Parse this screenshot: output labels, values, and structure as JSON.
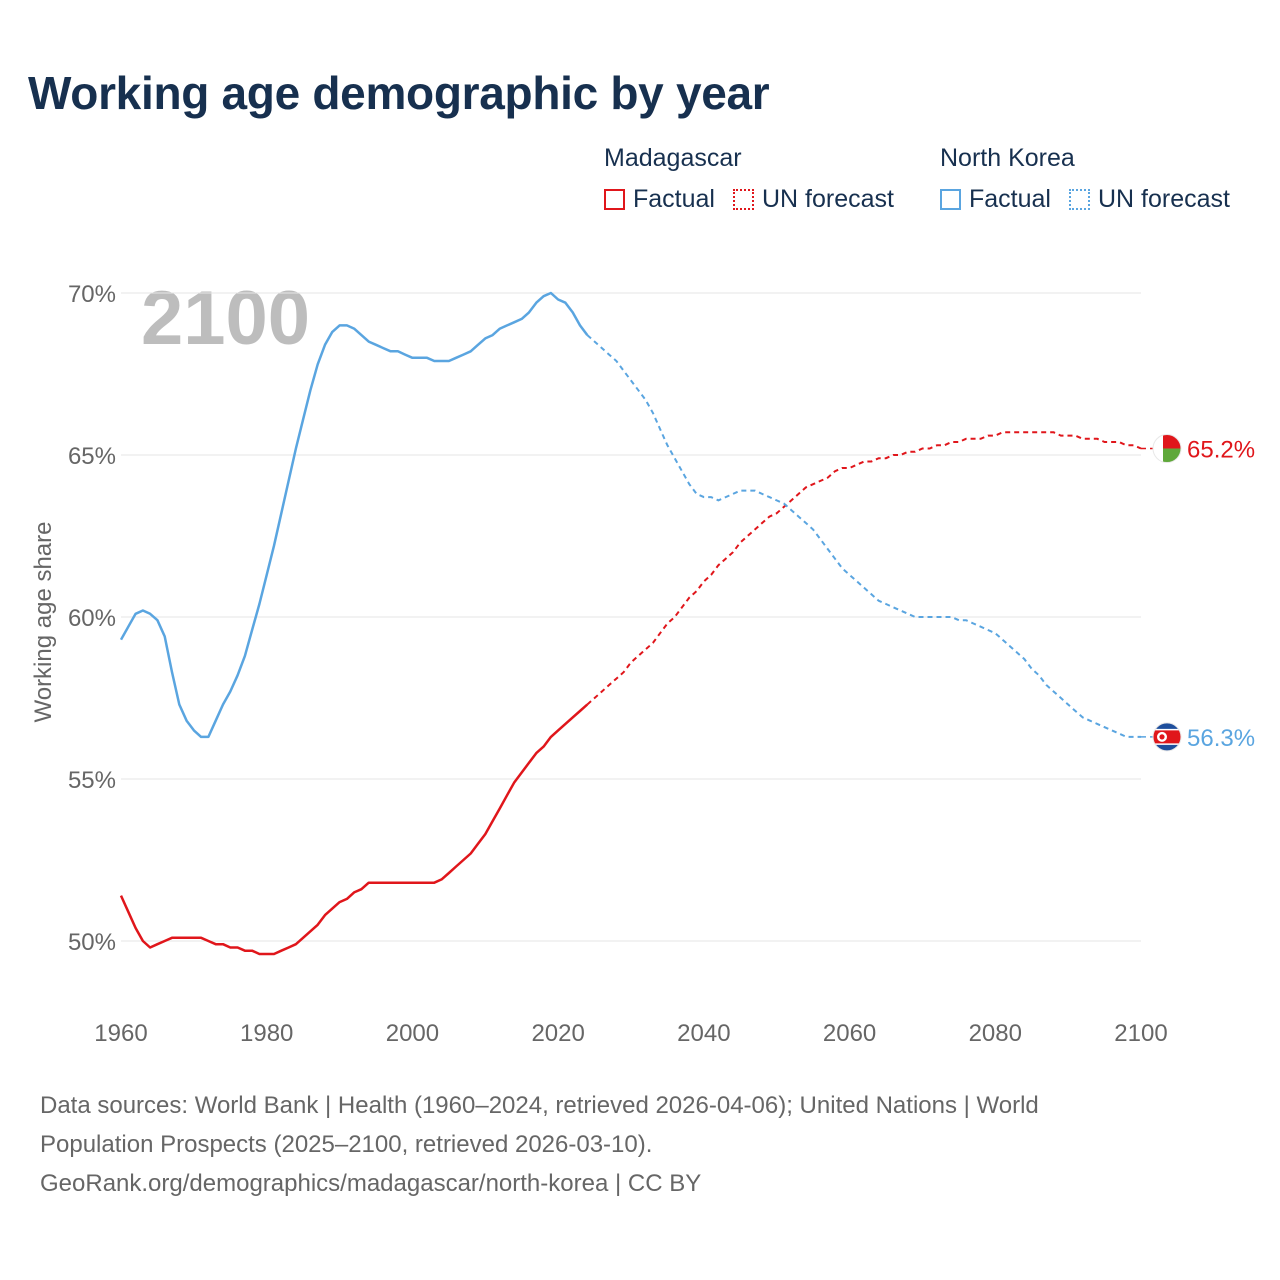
{
  "title": "Working age demographic by year",
  "year_overlay": "2100",
  "legend": {
    "groups": [
      {
        "name": "Madagascar",
        "factual": "Factual",
        "forecast": "UN forecast",
        "color": "#e0161b"
      },
      {
        "name": "North Korea",
        "factual": "Factual",
        "forecast": "UN forecast",
        "color": "#5aa5e0"
      }
    ]
  },
  "footer": {
    "line1": "Data sources: World Bank | Health (1960–2024, retrieved 2026-04-06); United Nations | World",
    "line2": "Population Prospects (2025–2100, retrieved 2026-03-10).",
    "line3": "GeoRank.org/demographics/madagascar/north-korea | CC BY"
  },
  "chart_data": {
    "type": "line",
    "title": "Working age demographic by year",
    "xlabel": "",
    "ylabel": "Working age share",
    "xlim": [
      1960,
      2100
    ],
    "ylim": [
      48.5,
      70.3
    ],
    "x_ticks": [
      1960,
      1980,
      2000,
      2020,
      2040,
      2060,
      2080,
      2100
    ],
    "x_tick_labels": [
      "1960",
      "1980",
      "2000",
      "2020",
      "2040",
      "2060",
      "2080",
      "2100"
    ],
    "y_ticks": [
      50,
      55,
      60,
      65,
      70
    ],
    "y_tick_labels": [
      "50%",
      "55%",
      "60%",
      "65%",
      "70%"
    ],
    "grid": true,
    "forecast_start": 2024,
    "series": [
      {
        "name": "Madagascar",
        "color": "#e0161b",
        "end_label": "65.2%",
        "flag": "madagascar-flag",
        "points": [
          [
            1960,
            51.4
          ],
          [
            1961,
            50.9
          ],
          [
            1962,
            50.4
          ],
          [
            1963,
            50.0
          ],
          [
            1964,
            49.8
          ],
          [
            1965,
            49.9
          ],
          [
            1966,
            50.0
          ],
          [
            1967,
            50.1
          ],
          [
            1968,
            50.1
          ],
          [
            1969,
            50.1
          ],
          [
            1970,
            50.1
          ],
          [
            1971,
            50.1
          ],
          [
            1972,
            50.0
          ],
          [
            1973,
            49.9
          ],
          [
            1974,
            49.9
          ],
          [
            1975,
            49.8
          ],
          [
            1976,
            49.8
          ],
          [
            1977,
            49.7
          ],
          [
            1978,
            49.7
          ],
          [
            1979,
            49.6
          ],
          [
            1980,
            49.6
          ],
          [
            1981,
            49.6
          ],
          [
            1982,
            49.7
          ],
          [
            1983,
            49.8
          ],
          [
            1984,
            49.9
          ],
          [
            1985,
            50.1
          ],
          [
            1986,
            50.3
          ],
          [
            1987,
            50.5
          ],
          [
            1988,
            50.8
          ],
          [
            1989,
            51.0
          ],
          [
            1990,
            51.2
          ],
          [
            1991,
            51.3
          ],
          [
            1992,
            51.5
          ],
          [
            1993,
            51.6
          ],
          [
            1994,
            51.8
          ],
          [
            1995,
            51.8
          ],
          [
            1996,
            51.8
          ],
          [
            1997,
            51.8
          ],
          [
            1998,
            51.8
          ],
          [
            1999,
            51.8
          ],
          [
            2000,
            51.8
          ],
          [
            2001,
            51.8
          ],
          [
            2002,
            51.8
          ],
          [
            2003,
            51.8
          ],
          [
            2004,
            51.9
          ],
          [
            2005,
            52.1
          ],
          [
            2006,
            52.3
          ],
          [
            2007,
            52.5
          ],
          [
            2008,
            52.7
          ],
          [
            2009,
            53.0
          ],
          [
            2010,
            53.3
          ],
          [
            2011,
            53.7
          ],
          [
            2012,
            54.1
          ],
          [
            2013,
            54.5
          ],
          [
            2014,
            54.9
          ],
          [
            2015,
            55.2
          ],
          [
            2016,
            55.5
          ],
          [
            2017,
            55.8
          ],
          [
            2018,
            56.0
          ],
          [
            2019,
            56.3
          ],
          [
            2020,
            56.5
          ],
          [
            2021,
            56.7
          ],
          [
            2022,
            56.9
          ],
          [
            2023,
            57.1
          ],
          [
            2024,
            57.3
          ],
          [
            2025,
            57.5
          ],
          [
            2026,
            57.7
          ],
          [
            2027,
            57.9
          ],
          [
            2028,
            58.1
          ],
          [
            2029,
            58.3
          ],
          [
            2030,
            58.6
          ],
          [
            2031,
            58.8
          ],
          [
            2032,
            59.0
          ],
          [
            2033,
            59.2
          ],
          [
            2034,
            59.5
          ],
          [
            2035,
            59.8
          ],
          [
            2036,
            60.0
          ],
          [
            2037,
            60.3
          ],
          [
            2038,
            60.6
          ],
          [
            2039,
            60.8
          ],
          [
            2040,
            61.1
          ],
          [
            2041,
            61.3
          ],
          [
            2042,
            61.6
          ],
          [
            2043,
            61.8
          ],
          [
            2044,
            62.0
          ],
          [
            2045,
            62.3
          ],
          [
            2046,
            62.5
          ],
          [
            2047,
            62.7
          ],
          [
            2048,
            62.9
          ],
          [
            2049,
            63.1
          ],
          [
            2050,
            63.2
          ],
          [
            2051,
            63.4
          ],
          [
            2052,
            63.6
          ],
          [
            2053,
            63.8
          ],
          [
            2054,
            64.0
          ],
          [
            2055,
            64.1
          ],
          [
            2056,
            64.2
          ],
          [
            2057,
            64.3
          ],
          [
            2058,
            64.5
          ],
          [
            2059,
            64.6
          ],
          [
            2060,
            64.6
          ],
          [
            2061,
            64.7
          ],
          [
            2062,
            64.8
          ],
          [
            2063,
            64.8
          ],
          [
            2064,
            64.9
          ],
          [
            2065,
            64.9
          ],
          [
            2066,
            65.0
          ],
          [
            2067,
            65.0
          ],
          [
            2068,
            65.1
          ],
          [
            2069,
            65.1
          ],
          [
            2070,
            65.2
          ],
          [
            2071,
            65.2
          ],
          [
            2072,
            65.3
          ],
          [
            2073,
            65.3
          ],
          [
            2074,
            65.4
          ],
          [
            2075,
            65.4
          ],
          [
            2076,
            65.5
          ],
          [
            2077,
            65.5
          ],
          [
            2078,
            65.5
          ],
          [
            2079,
            65.6
          ],
          [
            2080,
            65.6
          ],
          [
            2081,
            65.7
          ],
          [
            2082,
            65.7
          ],
          [
            2083,
            65.7
          ],
          [
            2084,
            65.7
          ],
          [
            2085,
            65.7
          ],
          [
            2086,
            65.7
          ],
          [
            2087,
            65.7
          ],
          [
            2088,
            65.7
          ],
          [
            2089,
            65.6
          ],
          [
            2090,
            65.6
          ],
          [
            2091,
            65.6
          ],
          [
            2092,
            65.5
          ],
          [
            2093,
            65.5
          ],
          [
            2094,
            65.5
          ],
          [
            2095,
            65.4
          ],
          [
            2096,
            65.4
          ],
          [
            2097,
            65.4
          ],
          [
            2098,
            65.3
          ],
          [
            2099,
            65.3
          ],
          [
            2100,
            65.2
          ]
        ]
      },
      {
        "name": "North Korea",
        "color": "#5aa5e0",
        "end_label": "56.3%",
        "flag": "north-korea-flag",
        "points": [
          [
            1960,
            59.3
          ],
          [
            1961,
            59.7
          ],
          [
            1962,
            60.1
          ],
          [
            1963,
            60.2
          ],
          [
            1964,
            60.1
          ],
          [
            1965,
            59.9
          ],
          [
            1966,
            59.4
          ],
          [
            1967,
            58.3
          ],
          [
            1968,
            57.3
          ],
          [
            1969,
            56.8
          ],
          [
            1970,
            56.5
          ],
          [
            1971,
            56.3
          ],
          [
            1972,
            56.3
          ],
          [
            1973,
            56.8
          ],
          [
            1974,
            57.3
          ],
          [
            1975,
            57.7
          ],
          [
            1976,
            58.2
          ],
          [
            1977,
            58.8
          ],
          [
            1978,
            59.6
          ],
          [
            1979,
            60.4
          ],
          [
            1980,
            61.3
          ],
          [
            1981,
            62.2
          ],
          [
            1982,
            63.2
          ],
          [
            1983,
            64.2
          ],
          [
            1984,
            65.2
          ],
          [
            1985,
            66.1
          ],
          [
            1986,
            67.0
          ],
          [
            1987,
            67.8
          ],
          [
            1988,
            68.4
          ],
          [
            1989,
            68.8
          ],
          [
            1990,
            69.0
          ],
          [
            1991,
            69.0
          ],
          [
            1992,
            68.9
          ],
          [
            1993,
            68.7
          ],
          [
            1994,
            68.5
          ],
          [
            1995,
            68.4
          ],
          [
            1996,
            68.3
          ],
          [
            1997,
            68.2
          ],
          [
            1998,
            68.2
          ],
          [
            1999,
            68.1
          ],
          [
            2000,
            68.0
          ],
          [
            2001,
            68.0
          ],
          [
            2002,
            68.0
          ],
          [
            2003,
            67.9
          ],
          [
            2004,
            67.9
          ],
          [
            2005,
            67.9
          ],
          [
            2006,
            68.0
          ],
          [
            2007,
            68.1
          ],
          [
            2008,
            68.2
          ],
          [
            2009,
            68.4
          ],
          [
            2010,
            68.6
          ],
          [
            2011,
            68.7
          ],
          [
            2012,
            68.9
          ],
          [
            2013,
            69.0
          ],
          [
            2014,
            69.1
          ],
          [
            2015,
            69.2
          ],
          [
            2016,
            69.4
          ],
          [
            2017,
            69.7
          ],
          [
            2018,
            69.9
          ],
          [
            2019,
            70.0
          ],
          [
            2020,
            69.8
          ],
          [
            2021,
            69.7
          ],
          [
            2022,
            69.4
          ],
          [
            2023,
            69.0
          ],
          [
            2024,
            68.7
          ],
          [
            2025,
            68.5
          ],
          [
            2026,
            68.3
          ],
          [
            2027,
            68.1
          ],
          [
            2028,
            67.9
          ],
          [
            2029,
            67.6
          ],
          [
            2030,
            67.3
          ],
          [
            2031,
            67.0
          ],
          [
            2032,
            66.7
          ],
          [
            2033,
            66.3
          ],
          [
            2034,
            65.8
          ],
          [
            2035,
            65.3
          ],
          [
            2036,
            64.9
          ],
          [
            2037,
            64.5
          ],
          [
            2038,
            64.1
          ],
          [
            2039,
            63.8
          ],
          [
            2040,
            63.7
          ],
          [
            2041,
            63.7
          ],
          [
            2042,
            63.6
          ],
          [
            2043,
            63.7
          ],
          [
            2044,
            63.8
          ],
          [
            2045,
            63.9
          ],
          [
            2046,
            63.9
          ],
          [
            2047,
            63.9
          ],
          [
            2048,
            63.8
          ],
          [
            2049,
            63.7
          ],
          [
            2050,
            63.6
          ],
          [
            2051,
            63.5
          ],
          [
            2052,
            63.3
          ],
          [
            2053,
            63.1
          ],
          [
            2054,
            62.9
          ],
          [
            2055,
            62.7
          ],
          [
            2056,
            62.4
          ],
          [
            2057,
            62.1
          ],
          [
            2058,
            61.8
          ],
          [
            2059,
            61.5
          ],
          [
            2060,
            61.3
          ],
          [
            2061,
            61.1
          ],
          [
            2062,
            60.9
          ],
          [
            2063,
            60.7
          ],
          [
            2064,
            60.5
          ],
          [
            2065,
            60.4
          ],
          [
            2066,
            60.3
          ],
          [
            2067,
            60.2
          ],
          [
            2068,
            60.1
          ],
          [
            2069,
            60.0
          ],
          [
            2070,
            60.0
          ],
          [
            2071,
            60.0
          ],
          [
            2072,
            60.0
          ],
          [
            2073,
            60.0
          ],
          [
            2074,
            60.0
          ],
          [
            2075,
            59.9
          ],
          [
            2076,
            59.9
          ],
          [
            2077,
            59.8
          ],
          [
            2078,
            59.7
          ],
          [
            2079,
            59.6
          ],
          [
            2080,
            59.5
          ],
          [
            2081,
            59.3
          ],
          [
            2082,
            59.1
          ],
          [
            2083,
            58.9
          ],
          [
            2084,
            58.7
          ],
          [
            2085,
            58.4
          ],
          [
            2086,
            58.2
          ],
          [
            2087,
            57.9
          ],
          [
            2088,
            57.7
          ],
          [
            2089,
            57.5
          ],
          [
            2090,
            57.3
          ],
          [
            2091,
            57.1
          ],
          [
            2092,
            56.9
          ],
          [
            2093,
            56.8
          ],
          [
            2094,
            56.7
          ],
          [
            2095,
            56.6
          ],
          [
            2096,
            56.5
          ],
          [
            2097,
            56.4
          ],
          [
            2098,
            56.3
          ],
          [
            2099,
            56.3
          ],
          [
            2100,
            56.3
          ]
        ]
      }
    ]
  }
}
